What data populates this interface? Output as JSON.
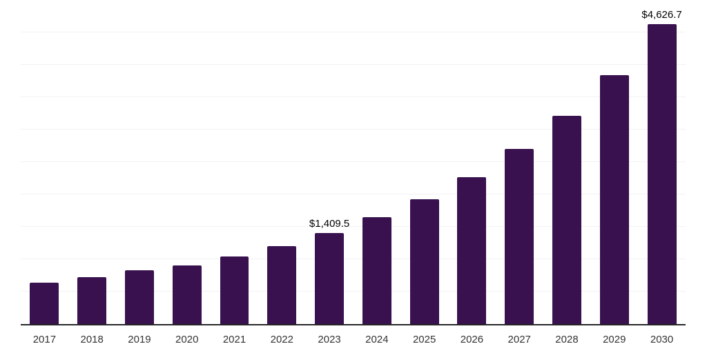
{
  "chart_data": {
    "type": "bar",
    "title": "",
    "xlabel": "",
    "ylabel": "",
    "categories": [
      "2017",
      "2018",
      "2019",
      "2020",
      "2021",
      "2022",
      "2023",
      "2024",
      "2025",
      "2026",
      "2027",
      "2028",
      "2029",
      "2030"
    ],
    "values": [
      640,
      725,
      830,
      905,
      1045,
      1205,
      1409.5,
      1645,
      1930,
      2270,
      2700,
      3210,
      3840,
      4626.7
    ],
    "data_labels": {
      "2023": "$1,409.5",
      "2030": "$4,626.7"
    },
    "ylim": [
      0,
      5000
    ],
    "gridline_interval": 500,
    "grid": true,
    "legend": "none",
    "bar_color": "#38114E",
    "gridline_color": "#f2f2f2",
    "axis_line_color": "#262626",
    "x_tick_color": "#333333",
    "data_label_color": "#000000"
  }
}
